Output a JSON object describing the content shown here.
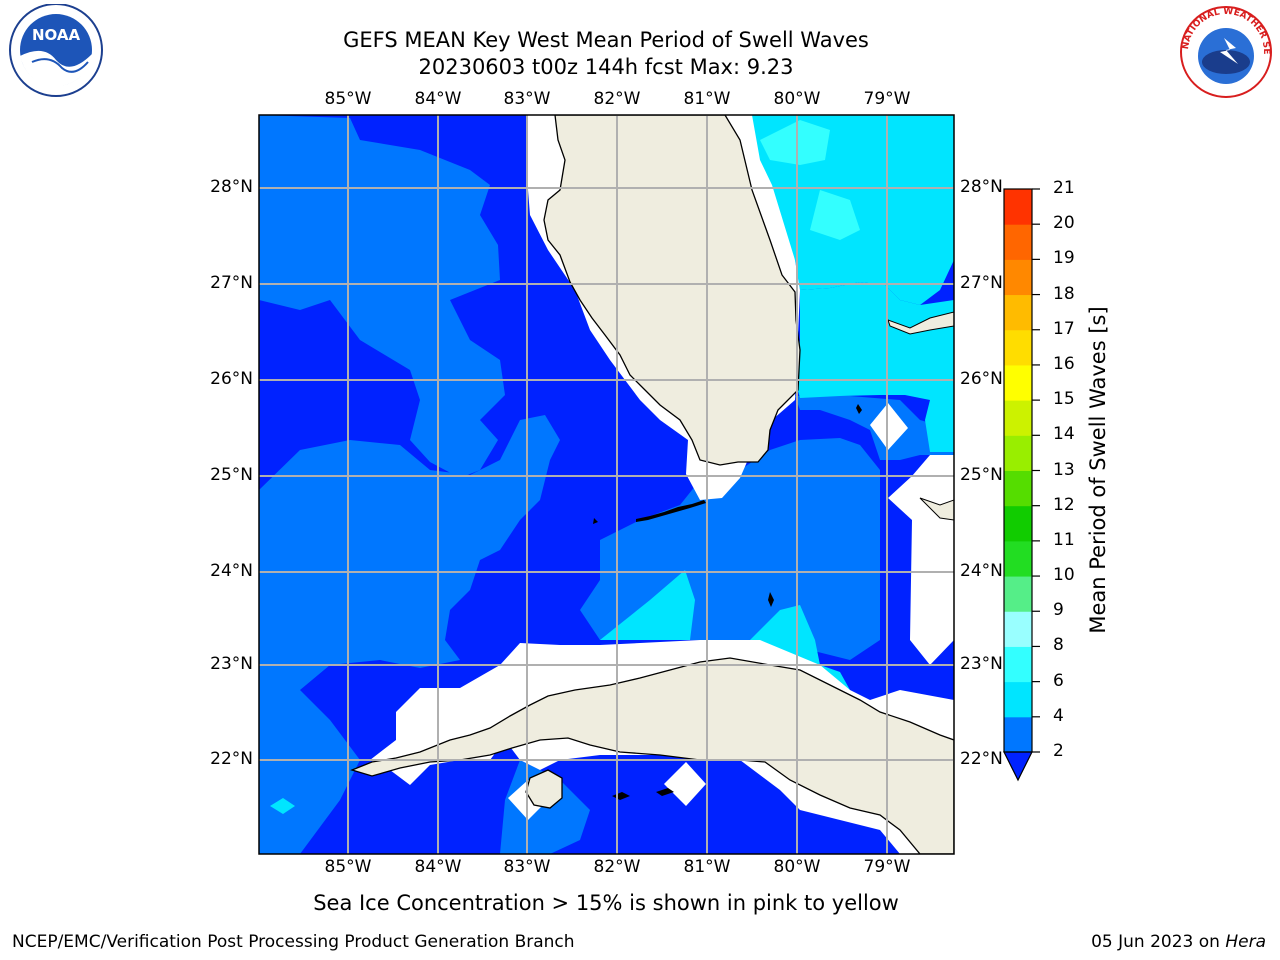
{
  "title_line1": "GEFS MEAN Key West Mean Period of Swell Waves",
  "title_line2": "20230603 t00z 144h fcst   Max: 9.23",
  "lon_labels": [
    "85°W",
    "84°W",
    "83°W",
    "82°W",
    "81°W",
    "80°W",
    "79°W"
  ],
  "lat_labels": [
    "28°N",
    "27°N",
    "26°N",
    "25°N",
    "24°N",
    "23°N",
    "22°N"
  ],
  "colorbar": {
    "label": "Mean Period of Swell Waves [s]",
    "ticks": [
      "2",
      "4",
      "6",
      "8",
      "9",
      "10",
      "11",
      "12",
      "13",
      "14",
      "15",
      "16",
      "17",
      "18",
      "19",
      "20",
      "21"
    ],
    "colors": [
      "#0077ff",
      "#00e5ff",
      "#33ffff",
      "#99ffff",
      "#55ee88",
      "#22dd22",
      "#11cc00",
      "#55dd00",
      "#99ee00",
      "#ccf200",
      "#ffff00",
      "#ffdd00",
      "#ffbb00",
      "#ff8800",
      "#ff6600",
      "#ff3300"
    ],
    "under_color": "#0022ff"
  },
  "colors": {
    "deep_blue": "#0022ff",
    "mid_blue": "#0077ff",
    "cyan": "#00e5ff",
    "light_cyan": "#33ffff",
    "pale_cyan": "#99ffff",
    "land": "#efeddf",
    "grid": "#b0b0b0"
  },
  "footnote": "Sea Ice Concentration > 15% is shown in pink to yellow",
  "credit": "NCEP/EMC/Verification Post Processing Product Generation Branch",
  "date_text": "05 Jun 2023 on ",
  "date_host": "Hera",
  "logos": {
    "noaa_text": "NOAA",
    "nws_text": "NATIONAL WEATHER SERVICE"
  }
}
